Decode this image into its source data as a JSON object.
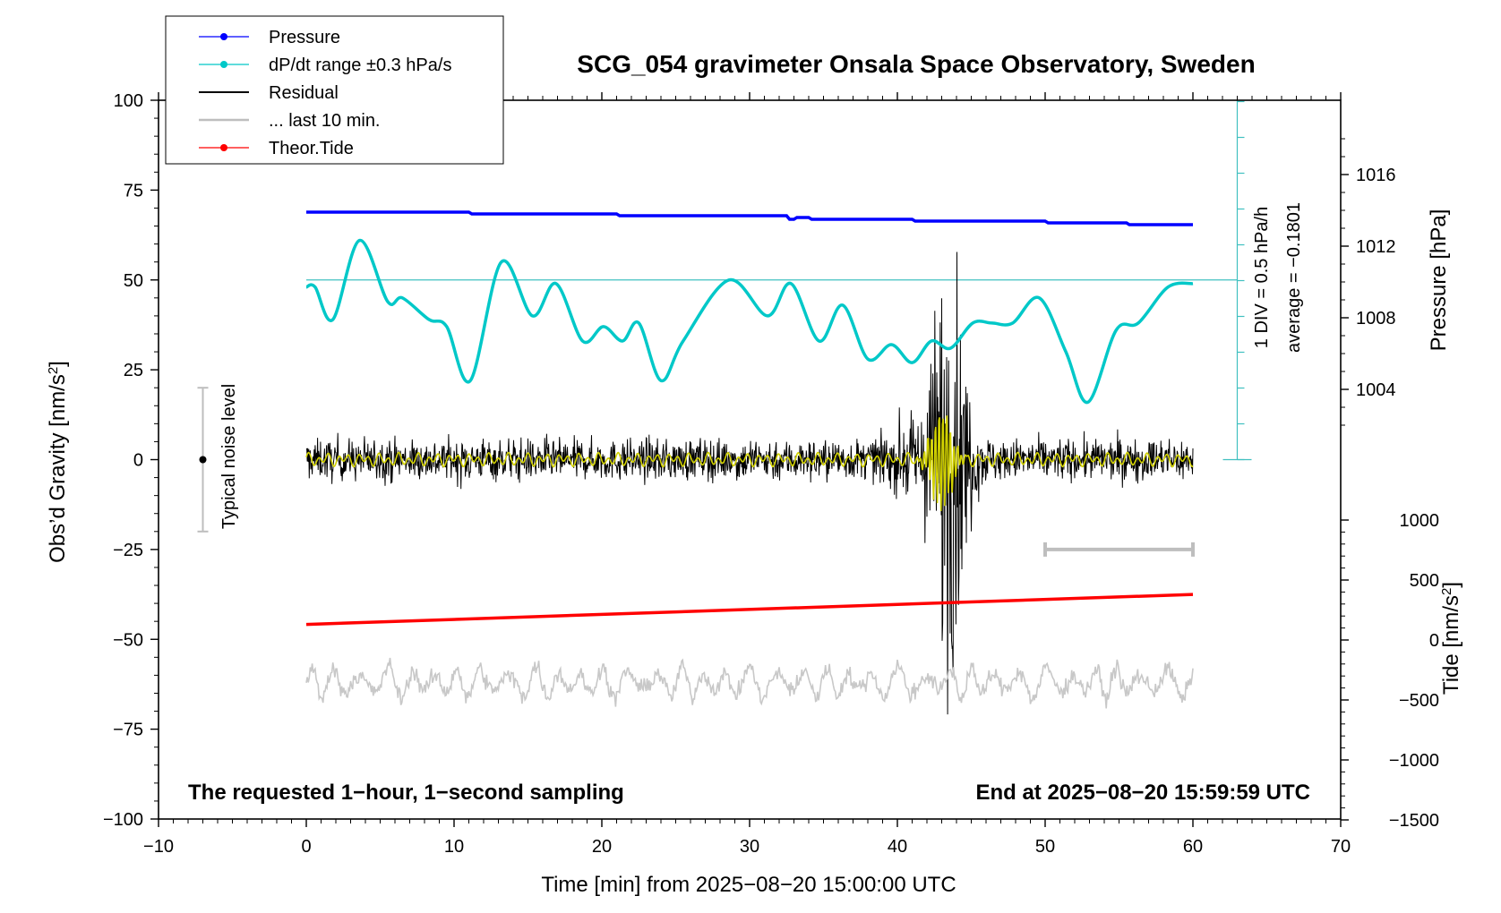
{
  "chart_data": {
    "type": "line",
    "title": "SCG_054 gravimeter Onsala Space Observatory, Sweden",
    "xlabel": "Time [min] from 2025−08−20 15:00:00 UTC",
    "ylabel_left": "Obs’d Gravity [nm/s",
    "ylabel_left_sup": "2",
    "ylabel_left_end": "]",
    "ylabel_right_pressure": "Pressure [hPa]",
    "ylabel_right_tide": "Tide [nm/s",
    "ylabel_right_tide_sup": "2",
    "ylabel_right_tide_end": "]",
    "xlim": [
      -10,
      70
    ],
    "ylim": [
      -100,
      100
    ],
    "pressure_ylim": [
      1000,
      1020
    ],
    "tide_ylim": [
      -1500,
      1500
    ],
    "x_ticks": [
      "−10",
      "0",
      "10",
      "20",
      "30",
      "40",
      "50",
      "60",
      "70"
    ],
    "y_ticks": [
      "100",
      "75",
      "50",
      "25",
      "0",
      "−25",
      "−50",
      "−75",
      "−100"
    ],
    "pressure_ticks": [
      "1016",
      "1012",
      "1008",
      "1004"
    ],
    "tide_ticks": [
      "1000",
      "500",
      "0",
      "−500",
      "−1000",
      "−1500"
    ],
    "legend": [
      {
        "label": "Pressure",
        "color": "#0000ff",
        "marker": true
      },
      {
        "label": "dP/dt range ±0.3 hPa/s",
        "color": "#00c8c8",
        "marker": true
      },
      {
        "label": "Residual",
        "color": "#000000",
        "marker": false
      },
      {
        "label": "... last 10 min.",
        "color": "#bebebe",
        "marker": false
      },
      {
        "label": "Theor.Tide",
        "color": "#ff0000",
        "marker": true
      }
    ],
    "annotations": {
      "noise_label": "Typical noise level",
      "noise_range": [
        -20,
        20
      ],
      "noise_x": -7,
      "scale_line1": "1 DIV = 0.5 hPa/h",
      "scale_line2": "average = −0.1801",
      "bottom_left": "The requested 1−hour, 1−second sampling",
      "bottom_right": "End at 2025−08−20 15:59:59 UTC",
      "last10_bar": [
        50,
        60
      ],
      "last10_level": -25
    },
    "series": [
      {
        "name": "Pressure",
        "color": "#0000ff",
        "axis": "pressure",
        "x": [
          0,
          11,
          11.2,
          21,
          21.2,
          32.5,
          32.7,
          33,
          33.2,
          34,
          34.2,
          41,
          41.2,
          50,
          50.2,
          55.5,
          55.7,
          60
        ],
        "y": [
          1013.9,
          1013.9,
          1013.8,
          1013.8,
          1013.7,
          1013.7,
          1013.5,
          1013.5,
          1013.6,
          1013.6,
          1013.5,
          1013.5,
          1013.4,
          1013.4,
          1013.3,
          1013.3,
          1013.2,
          1013.2
        ]
      },
      {
        "name": "dP/dt",
        "color": "#00c8c8",
        "axis": "gravity",
        "x": [
          0,
          0.6,
          1.8,
          3.6,
          5.5,
          6.5,
          8.3,
          9.5,
          11.1,
          13.2,
          15.3,
          16.9,
          18.7,
          20.1,
          21.4,
          22.5,
          24.0,
          25.5,
          28.6,
          31.2,
          32.8,
          34.7,
          36.3,
          38.0,
          39.6,
          41.0,
          42.3,
          43.6,
          45.1,
          46.4,
          47.8,
          49.6,
          51.4,
          52.9,
          54.8,
          56.3,
          58.3,
          60
        ],
        "y": [
          48,
          48,
          39,
          61,
          44,
          45,
          39,
          37,
          22,
          55,
          40,
          49,
          33,
          37,
          33,
          38,
          22,
          33,
          50,
          40,
          49,
          33,
          43,
          28,
          32,
          27,
          33,
          31,
          38,
          38,
          38,
          45,
          30,
          16,
          36,
          38,
          48,
          49
        ]
      },
      {
        "name": "Theor.Tide",
        "color": "#ff0000",
        "axis": "tide",
        "x": [
          0,
          60
        ],
        "y": [
          130,
          380
        ]
      }
    ]
  }
}
